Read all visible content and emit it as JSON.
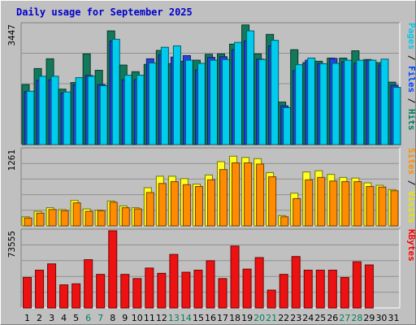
{
  "chart_data": [
    {
      "type": "bar",
      "panel": "top",
      "max_label": "3447",
      "ymax": 3447,
      "right_label_parts": [
        {
          "text": "Pages",
          "color": "#00c8e8"
        },
        {
          "text": " / ",
          "color": "#000000"
        },
        {
          "text": "Files",
          "color": "#0044ff"
        },
        {
          "text": " / ",
          "color": "#000000"
        },
        {
          "text": "Hits",
          "color": "#008060"
        }
      ],
      "categories": [
        "1",
        "2",
        "3",
        "4",
        "5",
        "6",
        "7",
        "8",
        "9",
        "10",
        "11",
        "12",
        "13",
        "14",
        "15",
        "16",
        "17",
        "18",
        "19",
        "20",
        "21",
        "22",
        "23",
        "24",
        "25",
        "26",
        "27",
        "28",
        "29",
        "30",
        "31"
      ],
      "series": [
        {
          "name": "Hits",
          "color": "#127a5a",
          "values": [
            1720,
            2180,
            2460,
            1590,
            1780,
            2600,
            2130,
            3260,
            2280,
            2090,
            2300,
            2700,
            2320,
            2390,
            2420,
            2590,
            2600,
            2880,
            3430,
            2600,
            3160,
            1220,
            2720,
            2350,
            2390,
            2480,
            2480,
            2690,
            2440,
            2350,
            1790
          ]
        },
        {
          "name": "Files",
          "color": "#2244dd",
          "values": [
            1520,
            1840,
            1860,
            1480,
            1720,
            1980,
            1720,
            2970,
            1860,
            1860,
            2460,
            2580,
            2510,
            2550,
            2140,
            2500,
            2520,
            2720,
            2970,
            2450,
            2830,
            1110,
            2120,
            2420,
            2320,
            2470,
            2370,
            2330,
            2420,
            2280,
            1700
          ]
        },
        {
          "name": "Pages",
          "color": "#00ccee",
          "values": [
            1530,
            1960,
            1960,
            1510,
            1920,
            1960,
            1690,
            3020,
            1990,
            1990,
            2340,
            2790,
            2830,
            2420,
            2330,
            2420,
            2440,
            2930,
            3260,
            2440,
            2990,
            1060,
            2290,
            2480,
            2320,
            2330,
            2420,
            2420,
            2420,
            2450,
            1640
          ]
        }
      ]
    },
    {
      "type": "bar",
      "panel": "middle",
      "max_label": "1261",
      "ymax": 1261,
      "right_label_parts": [
        {
          "text": "Sites",
          "color": "#ff8c00"
        },
        {
          "text": " / ",
          "color": "#000000"
        },
        {
          "text": "Visits",
          "color": "#e8e800"
        }
      ],
      "categories": [
        "1",
        "2",
        "3",
        "4",
        "5",
        "6",
        "7",
        "8",
        "9",
        "10",
        "11",
        "12",
        "13",
        "14",
        "15",
        "16",
        "17",
        "18",
        "19",
        "20",
        "21",
        "22",
        "23",
        "24",
        "25",
        "26",
        "27",
        "28",
        "29",
        "30",
        "31"
      ],
      "series": [
        {
          "name": "Visits",
          "color": "#ffff22",
          "values": [
            150,
            240,
            300,
            270,
            420,
            280,
            260,
            410,
            330,
            300,
            630,
            820,
            820,
            780,
            690,
            840,
            1060,
            1150,
            1130,
            1110,
            880,
            170,
            540,
            890,
            910,
            850,
            800,
            790,
            710,
            670,
            600
          ]
        },
        {
          "name": "Sites",
          "color": "#ff8c00",
          "values": [
            130,
            210,
            270,
            250,
            380,
            240,
            250,
            390,
            300,
            280,
            550,
            700,
            730,
            680,
            650,
            760,
            930,
            1040,
            1040,
            1020,
            810,
            150,
            450,
            760,
            800,
            740,
            730,
            730,
            650,
            640,
            580
          ]
        }
      ]
    },
    {
      "type": "bar",
      "panel": "bottom",
      "max_label": "73555",
      "ymax": 73555,
      "right_label_parts": [
        {
          "text": "KBytes",
          "color": "#ff0000"
        }
      ],
      "categories": [
        "1",
        "2",
        "3",
        "4",
        "5",
        "6",
        "7",
        "8",
        "9",
        "10",
        "11",
        "12",
        "13",
        "14",
        "15",
        "16",
        "17",
        "18",
        "19",
        "20",
        "21",
        "22",
        "23",
        "24",
        "25",
        "26",
        "27",
        "28",
        "29",
        "30",
        "31"
      ],
      "series": [
        {
          "name": "KBytes",
          "color": "#ee1111",
          "values": [
            29000,
            36000,
            42000,
            22000,
            23000,
            46000,
            32000,
            73555,
            32000,
            28000,
            38000,
            33000,
            51000,
            34000,
            36000,
            45000,
            28000,
            59000,
            37000,
            48000,
            17000,
            32000,
            49000,
            36000,
            36000,
            36000,
            29000,
            44000,
            41000,
            0,
            0
          ]
        }
      ]
    }
  ],
  "title": "Daily usage for September 2025",
  "x_labels": [
    {
      "t": "1",
      "c": "#000000"
    },
    {
      "t": "2",
      "c": "#000000"
    },
    {
      "t": "3",
      "c": "#000000"
    },
    {
      "t": "4",
      "c": "#000000"
    },
    {
      "t": "5",
      "c": "#000000"
    },
    {
      "t": "6",
      "c": "#00805a"
    },
    {
      "t": "7",
      "c": "#00805a"
    },
    {
      "t": "8",
      "c": "#000000"
    },
    {
      "t": "9",
      "c": "#000000"
    },
    {
      "t": "10",
      "c": "#000000"
    },
    {
      "t": "11",
      "c": "#000000"
    },
    {
      "t": "12",
      "c": "#000000"
    },
    {
      "t": "13",
      "c": "#00805a"
    },
    {
      "t": "14",
      "c": "#00805a"
    },
    {
      "t": "15",
      "c": "#000000"
    },
    {
      "t": "16",
      "c": "#000000"
    },
    {
      "t": "17",
      "c": "#000000"
    },
    {
      "t": "18",
      "c": "#000000"
    },
    {
      "t": "19",
      "c": "#000000"
    },
    {
      "t": "20",
      "c": "#00805a"
    },
    {
      "t": "21",
      "c": "#00805a"
    },
    {
      "t": "22",
      "c": "#000000"
    },
    {
      "t": "23",
      "c": "#000000"
    },
    {
      "t": "24",
      "c": "#000000"
    },
    {
      "t": "25",
      "c": "#000000"
    },
    {
      "t": "26",
      "c": "#000000"
    },
    {
      "t": "27",
      "c": "#00805a"
    },
    {
      "t": "28",
      "c": "#00805a"
    },
    {
      "t": "29",
      "c": "#000000"
    },
    {
      "t": "30",
      "c": "#000000"
    },
    {
      "t": "31",
      "c": "#000000"
    }
  ]
}
